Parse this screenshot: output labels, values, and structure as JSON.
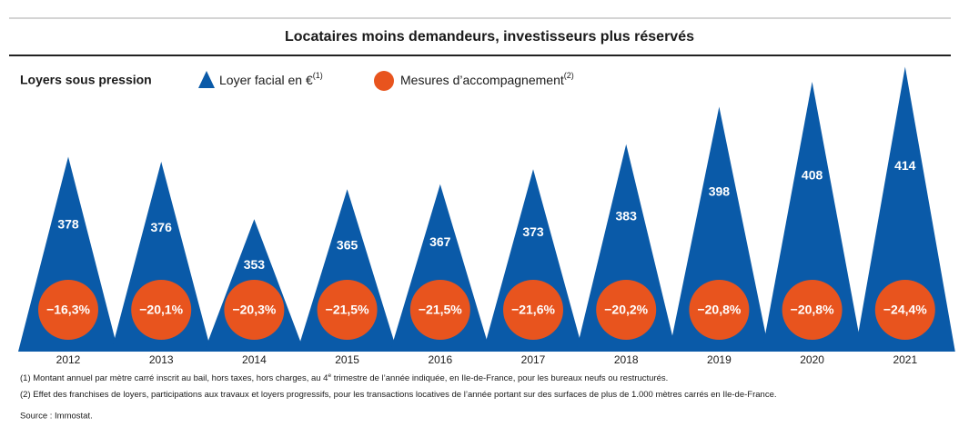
{
  "chart_data": {
    "type": "triangle",
    "title": "Locataires moins demandeurs, investisseurs plus réservés",
    "subtitle": "Loyers sous pression",
    "categories": [
      "2012",
      "2013",
      "2014",
      "2015",
      "2016",
      "2017",
      "2018",
      "2019",
      "2020",
      "2021"
    ],
    "ylim": [
      300,
      420
    ],
    "series": [
      {
        "name": "Loyer facial en €",
        "note": "(1)",
        "color": "#0a5aa8",
        "values": [
          378,
          376,
          353,
          365,
          367,
          373,
          383,
          398,
          408,
          414
        ]
      },
      {
        "name": "Mesures d’accompagnement",
        "note": "(2)",
        "color": "#e8541e",
        "values": [
          -16.3,
          -20.1,
          -20.3,
          -21.5,
          -21.5,
          -21.6,
          -20.2,
          -20.8,
          -20.8,
          -24.4
        ],
        "value_labels": [
          "−16,3%",
          "−20,1%",
          "−20,3%",
          "−21,5%",
          "−21,5%",
          "−21,6%",
          "−20,2%",
          "−20,8%",
          "−20,8%",
          "−24,4%"
        ]
      }
    ],
    "footnotes": [
      [
        "(1) Montant annuel par mètre carré inscrit au bail, hors taxes, hors charges, au 4",
        "e",
        " trimestre de l’année indiquée, en Ile-de-France, pour les bureaux neufs ou restructurés."
      ],
      [
        "(2) Effet des franchises de loyers, participations aux travaux et loyers progressifs, pour les transactions locatives de l’année portant sur des surfaces de plus de 1.000 mètres carrés en Ile-de-France."
      ]
    ],
    "source": "Source : Immostat."
  }
}
